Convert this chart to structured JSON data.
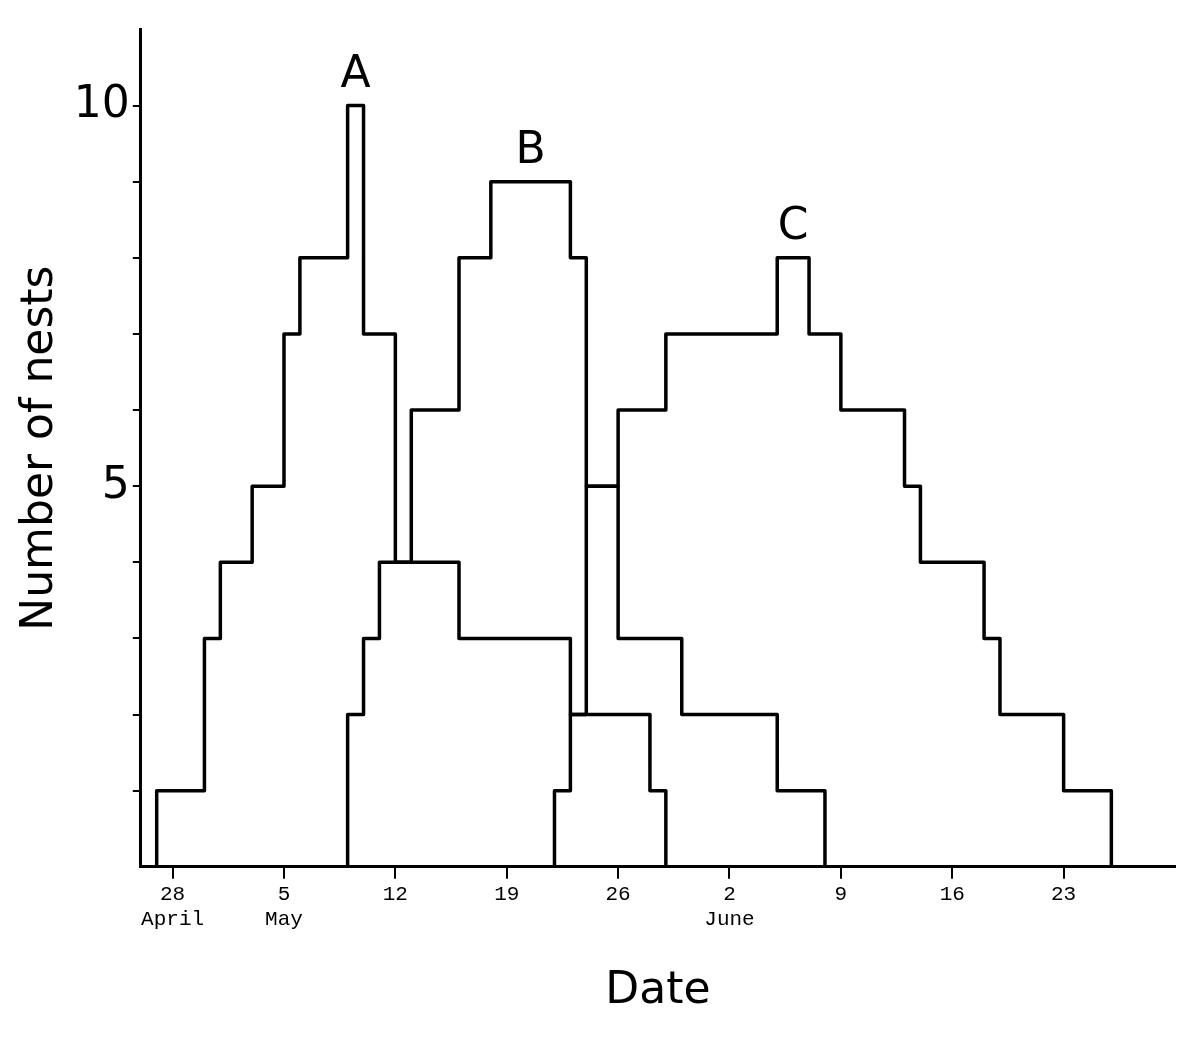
{
  "chart_data": {
    "type": "step",
    "xlabel": "Date",
    "ylabel": "Number of nests",
    "xlim": [
      "--04-26",
      "--06-30"
    ],
    "xticks": [
      {
        "value": "--04-28",
        "label": "28\nApril"
      },
      {
        "value": "--05-05",
        "label": "5\nMay"
      },
      {
        "value": "--05-12",
        "label": "12"
      },
      {
        "value": "--05-19",
        "label": "19"
      },
      {
        "value": "--05-26",
        "label": "26"
      },
      {
        "value": "--06-02",
        "label": "2\nJune"
      },
      {
        "value": "--06-09",
        "label": "9"
      },
      {
        "value": "--06-16",
        "label": "16"
      },
      {
        "value": "--06-23",
        "label": "23"
      }
    ],
    "ylim": [
      0,
      11
    ],
    "yticks": [
      {
        "value": 1,
        "label": null
      },
      {
        "value": 2,
        "label": null
      },
      {
        "value": 3,
        "label": null
      },
      {
        "value": 4,
        "label": null
      },
      5,
      {
        "value": 6,
        "label": null
      },
      {
        "value": 7,
        "label": null
      },
      {
        "value": 8,
        "label": null
      },
      {
        "value": 9,
        "label": null
      },
      10
    ],
    "series": [
      {
        "name": "A",
        "color": "#000000",
        "x": [
          "--04-27",
          "--04-27",
          "--04-30",
          "--05-01",
          "--05-03",
          "--05-05",
          "--05-06",
          "--05-09",
          "--05-10",
          "--05-12",
          "--05-16",
          "--05-23",
          "--05-28",
          "--05-29"
        ],
        "values": [
          0,
          1,
          3,
          4,
          5,
          7,
          8,
          10,
          7,
          4,
          3,
          2,
          1,
          0
        ]
      },
      {
        "name": "B",
        "color": "#000000",
        "x": [
          "--05-09",
          "--05-09",
          "--05-10",
          "--05-11",
          "--05-13",
          "--05-16",
          "--05-18",
          "--05-23",
          "--05-24",
          "--05-26",
          "--05-30",
          "--06-05",
          "--06-08"
        ],
        "values": [
          0,
          2,
          3,
          4,
          6,
          8,
          9,
          8,
          5,
          3,
          2,
          1,
          0
        ]
      },
      {
        "name": "C",
        "color": "#000000",
        "x": [
          "--05-22",
          "--05-22",
          "--05-23",
          "--05-24",
          "--05-26",
          "--05-29",
          "--06-05",
          "--06-07",
          "--06-09",
          "--06-13",
          "--06-14",
          "--06-18",
          "--06-19",
          "--06-23",
          "--06-26"
        ],
        "values": [
          0,
          1,
          2,
          5,
          6,
          7,
          8,
          7,
          6,
          5,
          4,
          3,
          2,
          1,
          0
        ]
      }
    ],
    "grid": false,
    "legend": false,
    "marker": "none",
    "line_style": "solid"
  }
}
